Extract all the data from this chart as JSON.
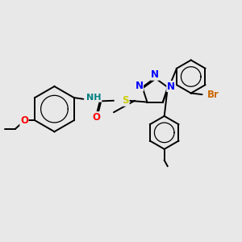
{
  "background_color": "#e8e8e8",
  "atom_colors": {
    "N": "#0000ff",
    "O": "#ff0000",
    "S": "#cccc00",
    "Br": "#cc6600",
    "H": "#008080",
    "C": "#000000"
  },
  "bond_color": "#000000",
  "bond_width": 1.4,
  "font_size": 8.5,
  "figsize": [
    3.0,
    3.0
  ],
  "dpi": 100
}
